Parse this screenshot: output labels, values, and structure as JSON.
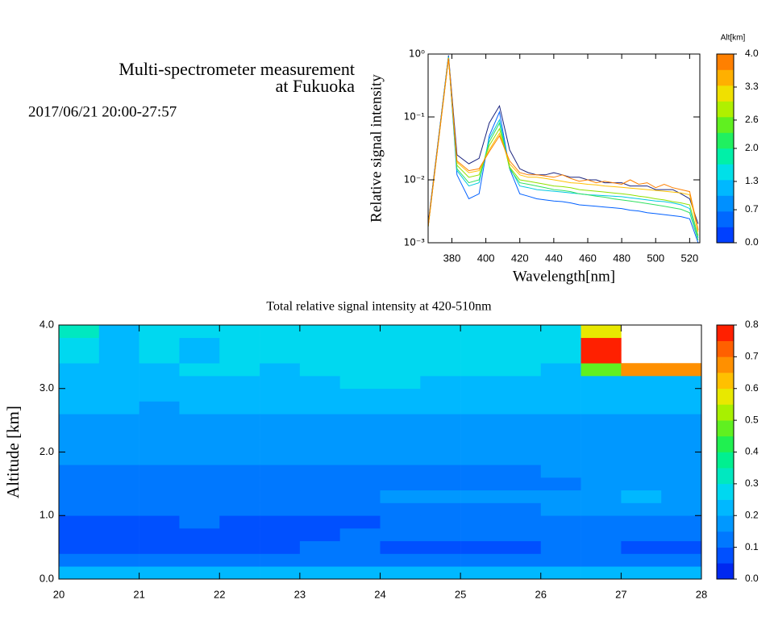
{
  "header": {
    "title": [
      "Multi-spectrometer measurement",
      "at Fukuoka"
    ],
    "date": "2017/06/21 20:00-27:57"
  },
  "chart_data": [
    {
      "type": "line",
      "xlabel": "Wavelength[nm]",
      "ylabel": "Relative signal intensity",
      "log_y": true,
      "xlim": [
        366,
        526
      ],
      "xticks": [
        380,
        400,
        420,
        440,
        460,
        480,
        500,
        520
      ],
      "ylim": [
        0.001,
        1
      ],
      "yticks": [
        {
          "value": 0.001,
          "label": "10⁻³"
        },
        {
          "value": 0.01,
          "label": "10⁻²"
        },
        {
          "value": 0.1,
          "label": "10⁻¹"
        },
        {
          "value": 1,
          "label": "10⁰"
        }
      ],
      "x": [
        366,
        378,
        383,
        390,
        396,
        402,
        408,
        414,
        420,
        425,
        430,
        435,
        440,
        445,
        450,
        455,
        460,
        465,
        470,
        475,
        480,
        485,
        490,
        495,
        500,
        505,
        510,
        515,
        520,
        525
      ],
      "series": [
        {
          "color": "#1a237e",
          "values": [
            0.002,
            0.95,
            0.025,
            0.018,
            0.022,
            0.08,
            0.15,
            0.03,
            0.015,
            0.013,
            0.012,
            0.012,
            0.013,
            0.012,
            0.011,
            0.011,
            0.01,
            0.01,
            0.009,
            0.009,
            0.009,
            0.008,
            0.008,
            0.008,
            0.007,
            0.007,
            0.007,
            0.006,
            0.005,
            0.002
          ]
        },
        {
          "color": "#0060ff",
          "values": [
            0.0018,
            0.92,
            0.012,
            0.005,
            0.006,
            0.05,
            0.12,
            0.015,
            0.006,
            0.0055,
            0.005,
            0.0048,
            0.0046,
            0.0045,
            0.0043,
            0.004,
            0.0039,
            0.0038,
            0.0037,
            0.0036,
            0.0035,
            0.0033,
            0.0032,
            0.003,
            0.0029,
            0.0028,
            0.0027,
            0.0026,
            0.0024,
            0.001
          ]
        },
        {
          "color": "#00c8e0",
          "values": [
            0.0018,
            0.9,
            0.014,
            0.008,
            0.009,
            0.045,
            0.09,
            0.016,
            0.008,
            0.0075,
            0.007,
            0.0068,
            0.0066,
            0.0064,
            0.0062,
            0.006,
            0.0058,
            0.0057,
            0.0056,
            0.0055,
            0.0054,
            0.0052,
            0.005,
            0.0048,
            0.0046,
            0.0045,
            0.0043,
            0.004,
            0.0035,
            0.0012
          ]
        },
        {
          "color": "#30e060",
          "values": [
            0.0018,
            0.88,
            0.015,
            0.009,
            0.01,
            0.04,
            0.08,
            0.015,
            0.009,
            0.0085,
            0.008,
            0.0075,
            0.007,
            0.0068,
            0.0065,
            0.006,
            0.0058,
            0.0055,
            0.0053,
            0.005,
            0.0048,
            0.0046,
            0.0044,
            0.0042,
            0.004,
            0.0038,
            0.0036,
            0.0034,
            0.003,
            0.0011
          ]
        },
        {
          "color": "#90e000",
          "values": [
            0.0018,
            0.87,
            0.017,
            0.011,
            0.012,
            0.035,
            0.065,
            0.016,
            0.01,
            0.0095,
            0.009,
            0.0085,
            0.008,
            0.0078,
            0.0075,
            0.007,
            0.0068,
            0.0066,
            0.0064,
            0.0062,
            0.006,
            0.0058,
            0.0055,
            0.0053,
            0.005,
            0.0048,
            0.0045,
            0.0043,
            0.004,
            0.0013
          ]
        },
        {
          "color": "#ffc000",
          "values": [
            0.0018,
            0.86,
            0.019,
            0.013,
            0.014,
            0.03,
            0.055,
            0.018,
            0.012,
            0.011,
            0.011,
            0.0105,
            0.01,
            0.0095,
            0.009,
            0.0088,
            0.0085,
            0.0083,
            0.008,
            0.0078,
            0.0076,
            0.0074,
            0.0072,
            0.007,
            0.0068,
            0.0066,
            0.0064,
            0.0062,
            0.0058,
            0.0015
          ]
        },
        {
          "color": "#ff8000",
          "values": [
            0.0018,
            0.85,
            0.02,
            0.014,
            0.015,
            0.028,
            0.05,
            0.02,
            0.013,
            0.012,
            0.012,
            0.0115,
            0.011,
            0.012,
            0.0105,
            0.0095,
            0.01,
            0.009,
            0.0095,
            0.009,
            0.0085,
            0.01,
            0.0085,
            0.009,
            0.0075,
            0.0085,
            0.0075,
            0.007,
            0.0065,
            0.0016
          ]
        }
      ],
      "colorbar": {
        "title": "Alt[km]",
        "lim": [
          0,
          4
        ],
        "ticks": [
          {
            "value": 0,
            "label": "0.0"
          },
          0.7,
          1.3,
          {
            "value": 2,
            "label": "2.0"
          },
          2.6,
          3.3,
          {
            "value": 4,
            "label": "4.0"
          }
        ],
        "colors": [
          "#0040ff",
          "#0068ff",
          "#0090ff",
          "#00b8ff",
          "#00e0e8",
          "#00f0a8",
          "#20f060",
          "#60f020",
          "#b0f000",
          "#f0e000",
          "#ffb000",
          "#ff8000"
        ]
      }
    },
    {
      "type": "heatmap",
      "title": "Total relative signal intensity at 420-510nm",
      "ylabel": "Altitude [km]",
      "xlim": [
        20,
        28
      ],
      "xticks": [
        20,
        21,
        22,
        23,
        24,
        25,
        26,
        27,
        28
      ],
      "ylim": [
        0,
        4
      ],
      "yticks": [
        {
          "value": 0,
          "label": "0.0"
        },
        {
          "value": 1,
          "label": "1.0"
        },
        {
          "value": 2,
          "label": "2.0"
        },
        {
          "value": 3,
          "label": "3.0"
        },
        {
          "value": 4,
          "label": "4.0"
        }
      ],
      "x": [
        20.25,
        20.75,
        21.25,
        21.75,
        22.25,
        22.75,
        23.25,
        23.75,
        24.25,
        24.75,
        25.25,
        25.75,
        26.25,
        26.75,
        27.25,
        27.75
      ],
      "y": [
        0.1,
        0.3,
        0.5,
        0.7,
        0.9,
        1.1,
        1.3,
        1.5,
        1.7,
        1.9,
        2.1,
        2.3,
        2.5,
        2.7,
        2.9,
        3.1,
        3.3,
        3.5,
        3.7,
        3.9
      ],
      "z": [
        [
          0.22,
          0.22,
          0.21,
          0.22,
          0.22,
          0.21,
          0.22,
          0.22,
          0.21,
          0.22,
          0.22,
          0.22,
          0.21,
          0.22,
          0.22,
          0.22
        ],
        [
          0.12,
          0.11,
          0.12,
          0.12,
          0.11,
          0.12,
          0.13,
          0.12,
          0.13,
          0.12,
          0.12,
          0.13,
          0.12,
          0.13,
          0.12,
          0.12
        ],
        [
          0.08,
          0.08,
          0.09,
          0.08,
          0.08,
          0.09,
          0.12,
          0.13,
          0.09,
          0.08,
          0.09,
          0.09,
          0.13,
          0.12,
          0.09,
          0.08
        ],
        [
          0.08,
          0.07,
          0.08,
          0.08,
          0.08,
          0.07,
          0.09,
          0.12,
          0.12,
          0.13,
          0.12,
          0.13,
          0.13,
          0.14,
          0.14,
          0.14
        ],
        [
          0.09,
          0.09,
          0.09,
          0.1,
          0.09,
          0.09,
          0.09,
          0.09,
          0.13,
          0.13,
          0.14,
          0.14,
          0.14,
          0.15,
          0.15,
          0.15
        ],
        [
          0.12,
          0.13,
          0.13,
          0.13,
          0.13,
          0.13,
          0.13,
          0.14,
          0.14,
          0.15,
          0.15,
          0.15,
          0.16,
          0.16,
          0.17,
          0.17
        ],
        [
          0.14,
          0.14,
          0.14,
          0.15,
          0.15,
          0.15,
          0.15,
          0.15,
          0.16,
          0.16,
          0.16,
          0.17,
          0.17,
          0.18,
          0.21,
          0.19
        ],
        [
          0.11,
          0.13,
          0.14,
          0.13,
          0.11,
          0.14,
          0.11,
          0.14,
          0.11,
          0.14,
          0.14,
          0.11,
          0.15,
          0.16,
          0.17,
          0.17
        ],
        [
          0.12,
          0.14,
          0.15,
          0.15,
          0.15,
          0.15,
          0.15,
          0.15,
          0.15,
          0.15,
          0.15,
          0.13,
          0.16,
          0.16,
          0.17,
          0.17
        ],
        [
          0.16,
          0.16,
          0.16,
          0.16,
          0.16,
          0.16,
          0.16,
          0.16,
          0.16,
          0.16,
          0.16,
          0.16,
          0.17,
          0.17,
          0.18,
          0.18
        ],
        [
          0.17,
          0.17,
          0.17,
          0.17,
          0.17,
          0.17,
          0.17,
          0.17,
          0.17,
          0.17,
          0.17,
          0.17,
          0.17,
          0.18,
          0.18,
          0.18
        ],
        [
          0.18,
          0.18,
          0.17,
          0.18,
          0.18,
          0.17,
          0.18,
          0.18,
          0.18,
          0.17,
          0.18,
          0.18,
          0.18,
          0.18,
          0.19,
          0.19
        ],
        [
          0.19,
          0.19,
          0.18,
          0.19,
          0.19,
          0.18,
          0.19,
          0.19,
          0.19,
          0.18,
          0.19,
          0.19,
          0.19,
          0.19,
          0.19,
          0.19
        ],
        [
          0.2,
          0.2,
          0.19,
          0.2,
          0.21,
          0.2,
          0.2,
          0.21,
          0.22,
          0.2,
          0.2,
          0.21,
          0.2,
          0.2,
          0.2,
          0.2
        ],
        [
          0.2,
          0.21,
          0.2,
          0.21,
          0.22,
          0.21,
          0.22,
          0.23,
          0.24,
          0.21,
          0.22,
          0.22,
          0.21,
          0.21,
          0.21,
          0.21
        ],
        [
          0.21,
          0.22,
          0.22,
          0.23,
          0.24,
          0.22,
          0.24,
          0.25,
          0.26,
          0.23,
          0.24,
          0.24,
          0.22,
          0.22,
          0.23,
          0.23
        ],
        [
          0.22,
          0.23,
          0.24,
          0.25,
          0.25,
          0.24,
          0.25,
          0.26,
          0.27,
          0.25,
          0.26,
          0.26,
          0.24,
          0.45,
          0.7,
          0.7
        ],
        [
          0.25,
          0.23,
          0.26,
          0.24,
          0.26,
          0.25,
          0.26,
          0.27,
          0.26,
          0.25,
          0.27,
          0.26,
          0.25,
          0.75,
          null,
          null
        ],
        [
          0.3,
          0.22,
          0.27,
          0.24,
          0.27,
          0.26,
          0.27,
          0.28,
          0.27,
          0.26,
          0.27,
          0.28,
          0.27,
          0.75,
          null,
          null
        ],
        [
          0.32,
          0.24,
          0.28,
          0.25,
          0.28,
          0.27,
          0.28,
          0.29,
          0.28,
          0.27,
          0.28,
          0.28,
          0.3,
          0.6,
          null,
          null
        ]
      ],
      "colorbar": {
        "lim": [
          0,
          0.8
        ],
        "ticks": [
          {
            "value": 0,
            "label": "0.0"
          },
          0.1,
          0.2,
          0.3,
          0.4,
          0.5,
          0.6,
          0.7,
          0.8
        ],
        "colors": [
          "#0028f0",
          "#0050ff",
          "#0078ff",
          "#0098ff",
          "#00b8ff",
          "#00d8f0",
          "#00e8c0",
          "#00f090",
          "#20f050",
          "#60f020",
          "#a8f000",
          "#e8e800",
          "#ffc000",
          "#ff9000",
          "#ff6000",
          "#ff2000"
        ]
      }
    }
  ]
}
